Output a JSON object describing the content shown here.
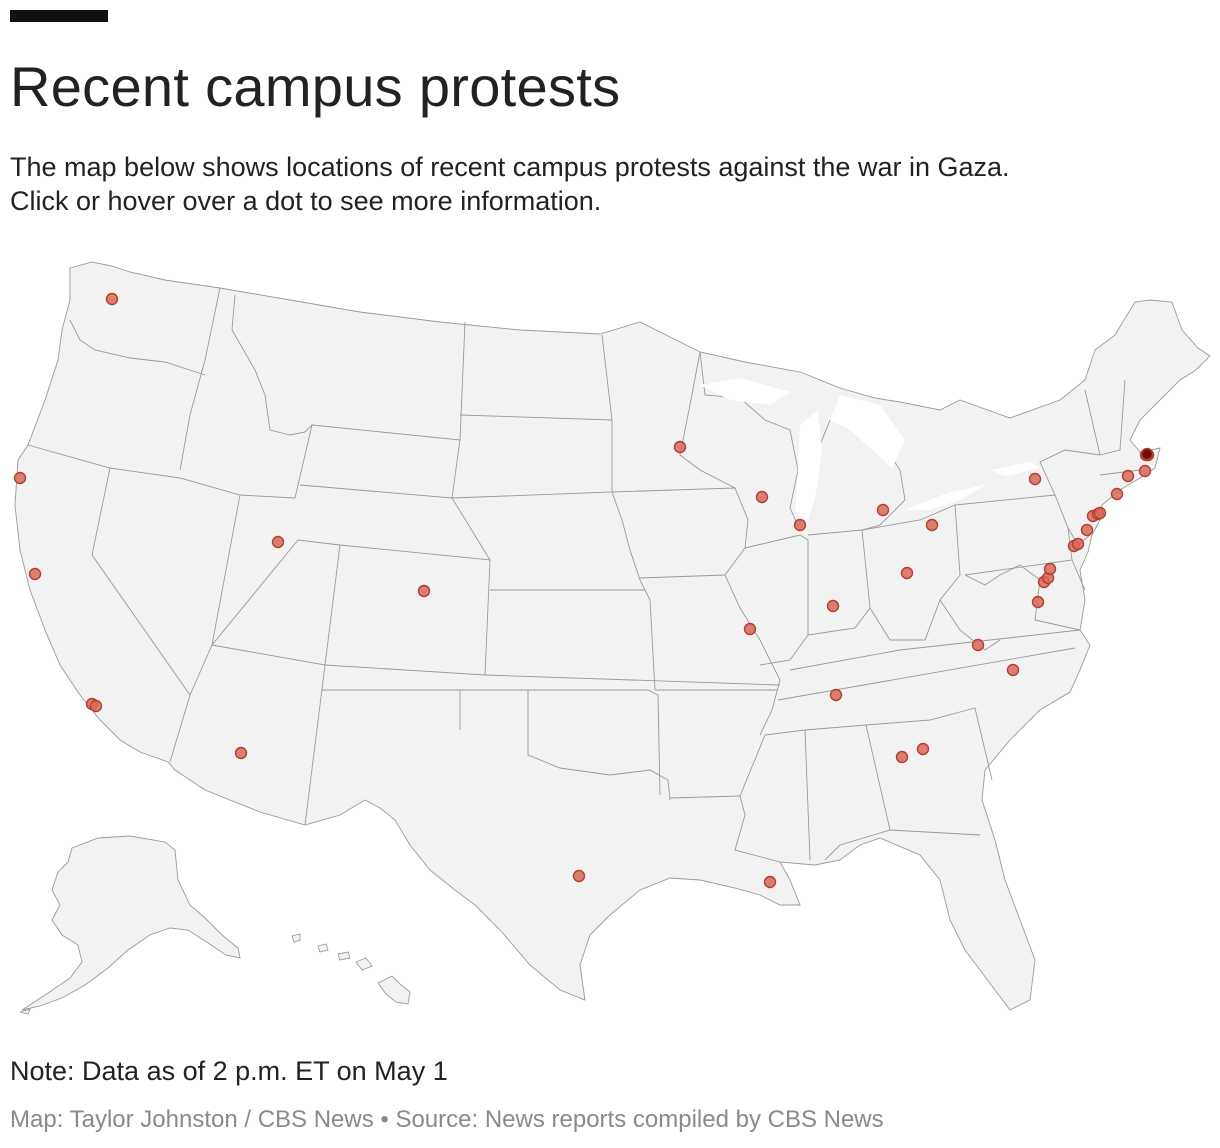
{
  "header": {
    "title": "Recent campus protests",
    "dek_line1": "The map below shows locations of recent campus protests against the war in Gaza.",
    "dek_line2": "Click or hover over a dot to see more information."
  },
  "footer": {
    "note": "Note: Data as of 2 p.m. ET on May 1",
    "credit": "Map: Taylor Johnston / CBS News • Source: News reports compiled by CBS News"
  },
  "colors": {
    "land": "#f2f2f2",
    "state_border": "#9a9a9a",
    "dot_fill": "#d9695a",
    "dot_stroke": "#b0402f",
    "dot_dense_fill": "#6e0a0a",
    "accent_bar": "#111111"
  },
  "map_data": {
    "type": "dot-map",
    "region": "United States",
    "marker_count": 40
  }
}
